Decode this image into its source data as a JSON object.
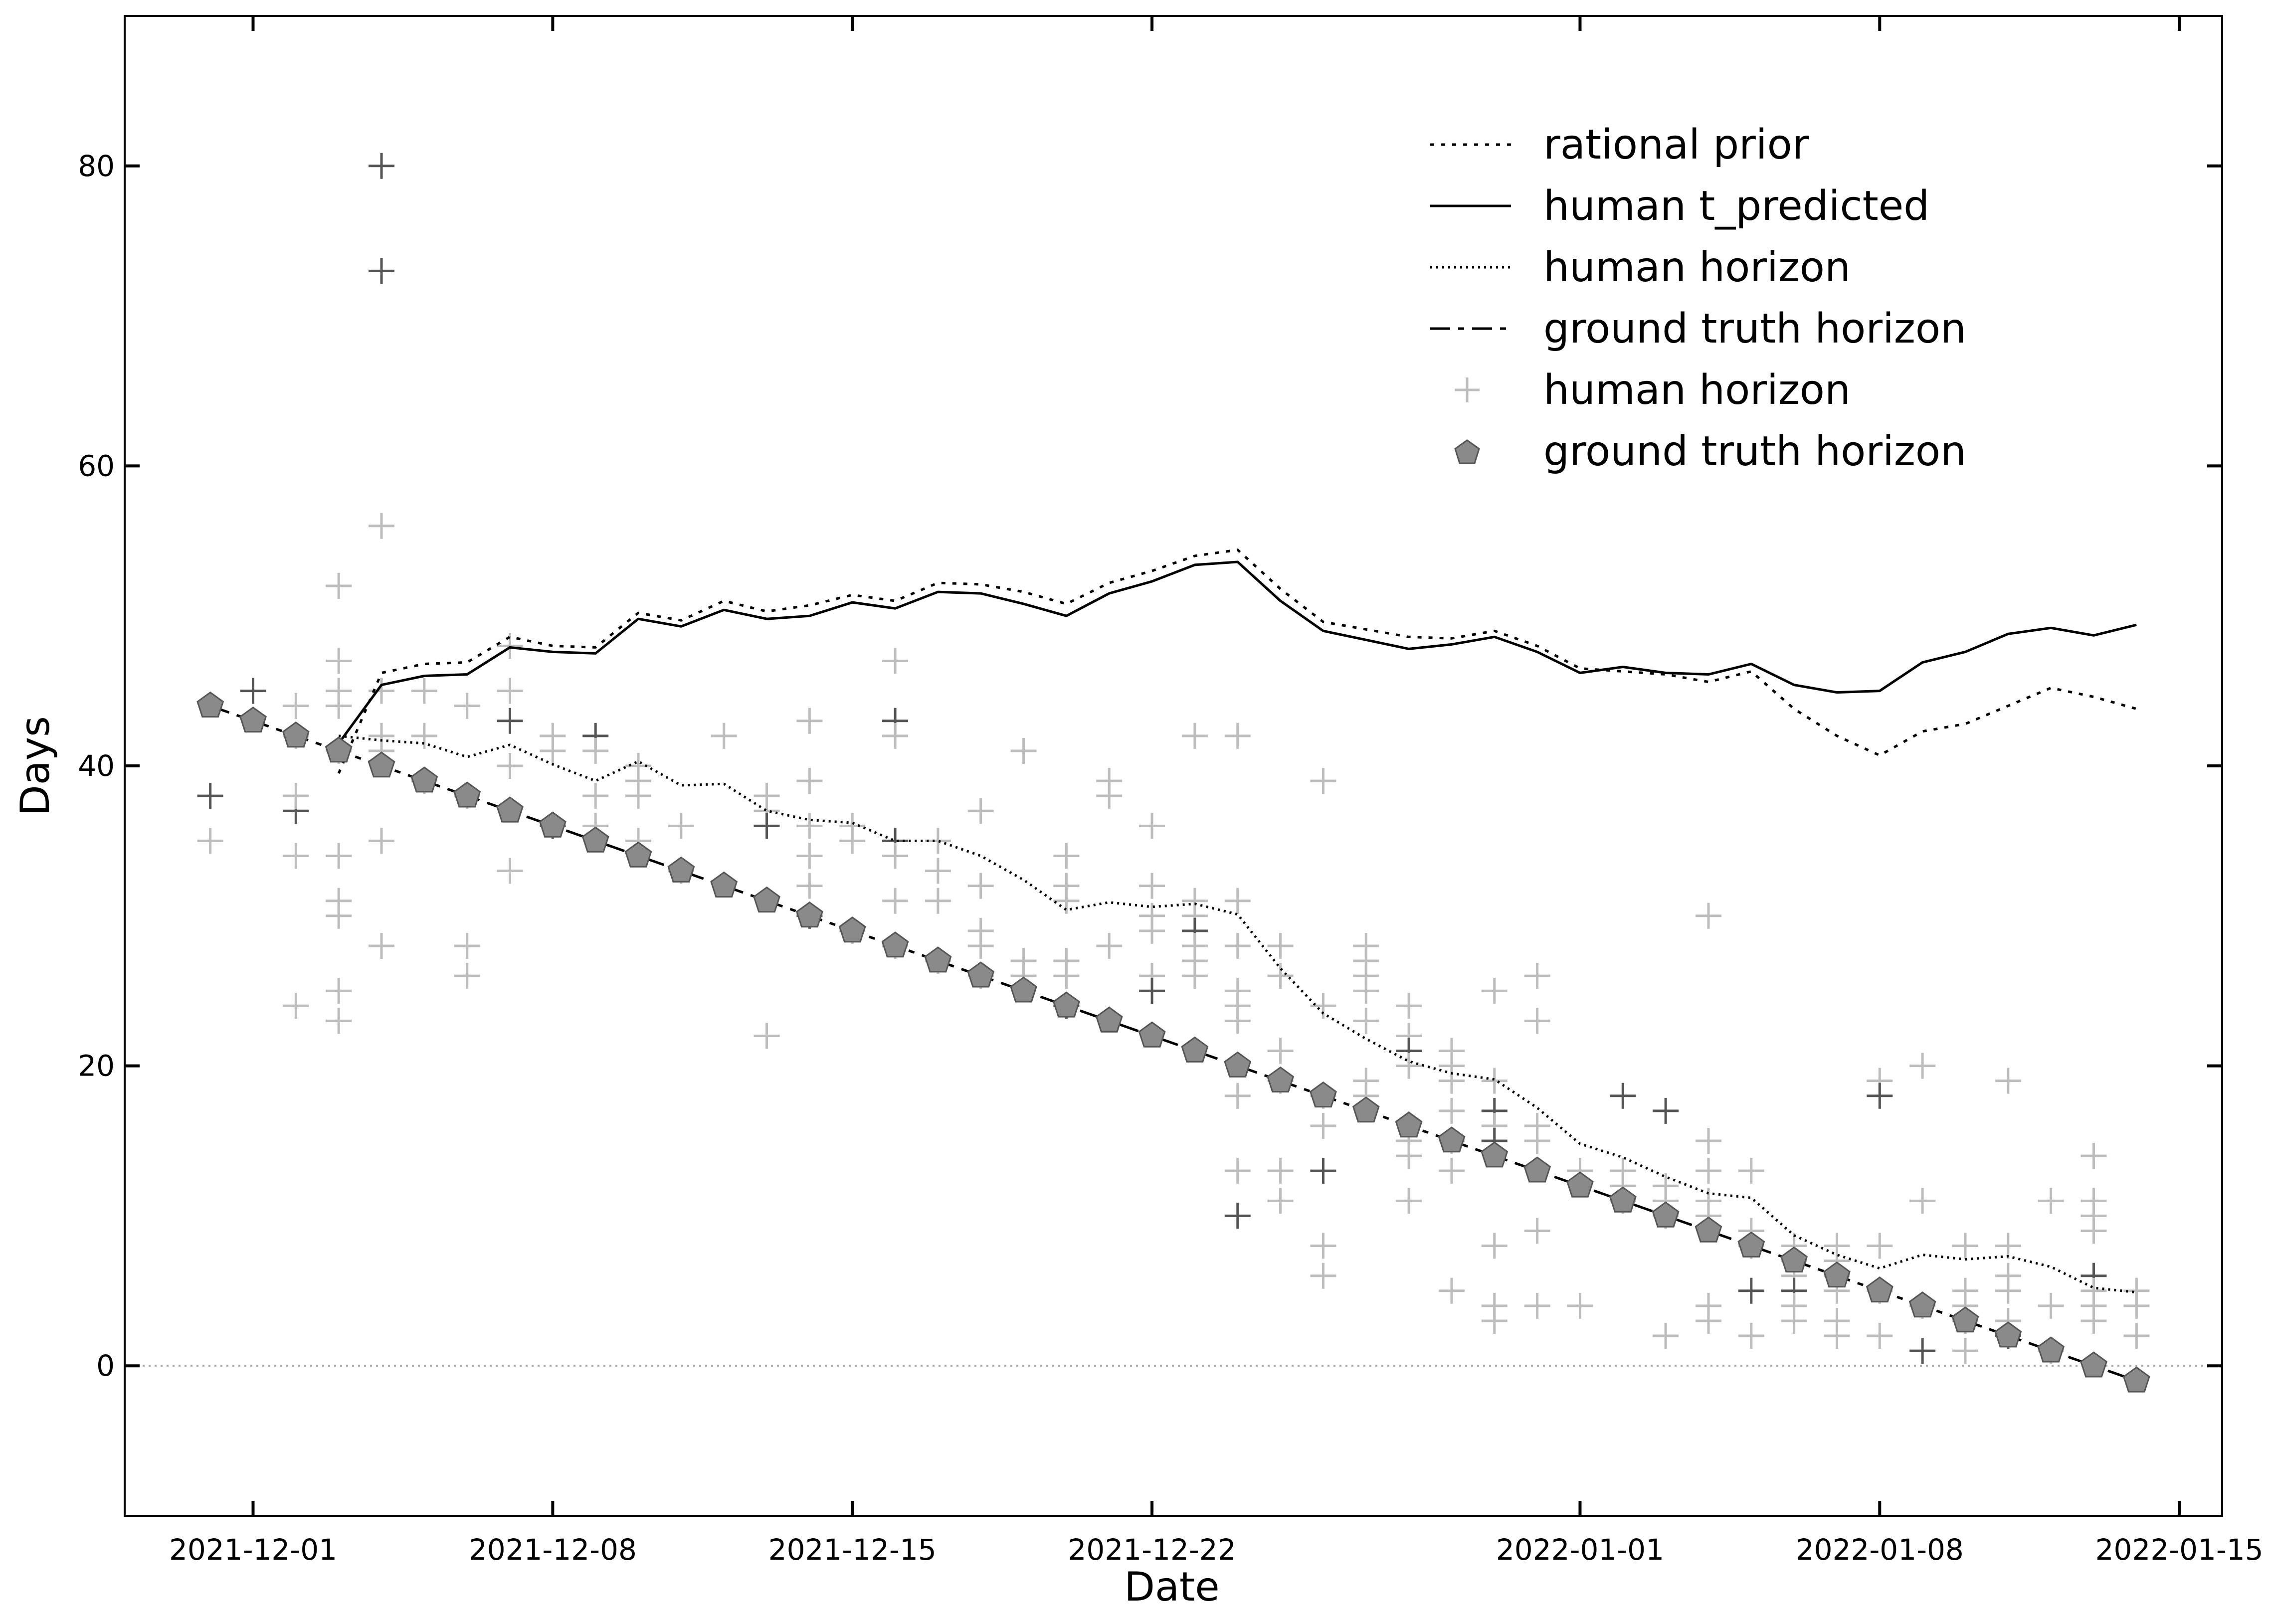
{
  "chart_data": {
    "type": "line",
    "xlabel": "Date",
    "ylabel": "Days",
    "x_tick_labels": [
      "2021-12-01",
      "2021-12-08",
      "2021-12-15",
      "2021-12-22",
      "2022-01-01",
      "2022-01-08",
      "2022-01-15"
    ],
    "y_tick_labels": [
      "0",
      "20",
      "40",
      "60",
      "80"
    ],
    "x_start": "2021-11-30",
    "ylim": [
      -10,
      90
    ],
    "xlim": [
      "2021-11-28",
      "2022-01-16"
    ],
    "zero_reference_line": true,
    "grid": false,
    "legend_position": "top-right",
    "legend": [
      {
        "label": "rational prior",
        "style": "dotted-line"
      },
      {
        "label": "human t_predicted",
        "style": "solid-line"
      },
      {
        "label": "human horizon",
        "style": "fine-dotted-line"
      },
      {
        "label": "ground truth horizon",
        "style": "dashed-line"
      },
      {
        "label": "human horizon",
        "style": "plus-marker"
      },
      {
        "label": "ground truth horizon",
        "style": "pentagon-marker"
      }
    ],
    "series": [
      {
        "name": "rational prior",
        "style": "dotted",
        "values": [
          null,
          null,
          null,
          39.5,
          46.2,
          46.8,
          46.9,
          48.6,
          48.0,
          47.9,
          50.2,
          49.7,
          51.0,
          50.3,
          50.7,
          51.4,
          51.0,
          52.2,
          52.1,
          51.6,
          50.8,
          52.2,
          53.0,
          54.0,
          54.4,
          51.8,
          49.6,
          49.1,
          48.6,
          48.5,
          49.0,
          48.0,
          46.5,
          46.3,
          46.1,
          45.6,
          46.3,
          43.8,
          42.0,
          40.7,
          42.3,
          42.8,
          44.0,
          45.2,
          44.6,
          43.8
        ]
      },
      {
        "name": "human t_predicted",
        "style": "solid",
        "values": [
          null,
          null,
          null,
          41.5,
          45.4,
          46.0,
          46.1,
          47.9,
          47.6,
          47.5,
          49.8,
          49.3,
          50.4,
          49.8,
          50.0,
          50.9,
          50.5,
          51.6,
          51.5,
          50.8,
          50.0,
          51.5,
          52.3,
          53.4,
          53.6,
          51.0,
          49.0,
          48.4,
          47.8,
          48.1,
          48.6,
          47.6,
          46.2,
          46.6,
          46.2,
          46.1,
          46.8,
          45.4,
          44.9,
          45.0,
          46.9,
          47.6,
          48.8,
          49.2,
          48.7,
          49.4
        ]
      },
      {
        "name": "human horizon",
        "style": "fine-dotted",
        "values": [
          null,
          null,
          null,
          42.0,
          41.7,
          41.5,
          40.6,
          41.4,
          40.1,
          39.0,
          40.3,
          38.7,
          38.8,
          37.0,
          36.4,
          36.2,
          35.0,
          35.0,
          34.0,
          32.4,
          30.4,
          30.9,
          30.6,
          30.8,
          30.1,
          26.5,
          23.5,
          21.8,
          20.3,
          19.5,
          19.1,
          17.2,
          14.8,
          13.9,
          12.6,
          11.5,
          11.2,
          8.7,
          7.4,
          6.5,
          7.4,
          7.1,
          7.3,
          6.6,
          5.2,
          4.9
        ]
      },
      {
        "name": "ground truth horizon",
        "style": "dashed",
        "values": [
          44,
          43,
          42,
          41,
          40,
          39,
          38,
          37,
          36,
          35,
          34,
          33,
          32,
          31,
          30,
          29,
          28,
          27,
          26,
          25,
          24,
          23,
          22,
          21,
          20,
          19,
          18,
          17,
          16,
          15,
          14,
          13,
          12,
          11,
          10,
          9,
          8,
          7,
          6,
          5,
          4,
          3,
          2,
          1,
          0,
          -1
        ]
      }
    ],
    "scatter_human_horizon": [
      [
        0,
        38
      ],
      [
        0,
        35
      ],
      [
        1,
        45
      ],
      [
        2,
        37
      ],
      [
        2,
        38
      ],
      [
        2,
        34
      ],
      [
        2,
        24
      ],
      [
        2,
        42
      ],
      [
        2,
        44
      ],
      [
        3,
        52
      ],
      [
        3,
        47
      ],
      [
        3,
        45
      ],
      [
        3,
        44
      ],
      [
        3,
        41
      ],
      [
        3,
        34
      ],
      [
        3,
        31
      ],
      [
        3,
        30
      ],
      [
        3,
        25
      ],
      [
        3,
        23
      ],
      [
        4,
        80
      ],
      [
        4,
        73
      ],
      [
        4,
        56
      ],
      [
        4,
        45
      ],
      [
        4,
        42
      ],
      [
        4,
        41
      ],
      [
        4,
        35
      ],
      [
        4,
        28
      ],
      [
        5,
        45
      ],
      [
        5,
        42
      ],
      [
        5,
        39
      ],
      [
        6,
        44
      ],
      [
        6,
        38
      ],
      [
        6,
        28
      ],
      [
        6,
        26
      ],
      [
        7,
        48
      ],
      [
        7,
        45
      ],
      [
        7,
        43
      ],
      [
        7,
        40
      ],
      [
        7,
        33
      ],
      [
        8,
        42
      ],
      [
        8,
        41
      ],
      [
        8,
        36
      ],
      [
        9,
        42
      ],
      [
        9,
        41
      ],
      [
        9,
        38
      ],
      [
        9,
        36
      ],
      [
        10,
        40
      ],
      [
        10,
        39
      ],
      [
        10,
        38
      ],
      [
        10,
        35
      ],
      [
        11,
        36
      ],
      [
        11,
        33
      ],
      [
        12,
        42
      ],
      [
        13,
        38
      ],
      [
        13,
        37
      ],
      [
        13,
        36
      ],
      [
        13,
        22
      ],
      [
        14,
        43
      ],
      [
        14,
        39
      ],
      [
        14,
        36
      ],
      [
        14,
        34
      ],
      [
        14,
        32
      ],
      [
        14,
        30
      ],
      [
        15,
        36
      ],
      [
        15,
        35
      ],
      [
        15,
        29
      ],
      [
        16,
        47
      ],
      [
        16,
        43
      ],
      [
        16,
        42
      ],
      [
        16,
        35
      ],
      [
        16,
        34
      ],
      [
        16,
        31
      ],
      [
        16,
        28
      ],
      [
        17,
        35
      ],
      [
        17,
        33
      ],
      [
        17,
        31
      ],
      [
        17,
        27
      ],
      [
        18,
        37
      ],
      [
        18,
        32
      ],
      [
        18,
        29
      ],
      [
        18,
        28
      ],
      [
        18,
        26
      ],
      [
        19,
        41
      ],
      [
        19,
        27
      ],
      [
        19,
        26
      ],
      [
        20,
        34
      ],
      [
        20,
        32
      ],
      [
        20,
        31
      ],
      [
        20,
        27
      ],
      [
        20,
        26
      ],
      [
        20,
        24
      ],
      [
        21,
        39
      ],
      [
        21,
        38
      ],
      [
        21,
        28
      ],
      [
        22,
        36
      ],
      [
        22,
        32
      ],
      [
        22,
        30
      ],
      [
        22,
        29
      ],
      [
        22,
        26
      ],
      [
        22,
        25
      ],
      [
        23,
        42
      ],
      [
        23,
        31
      ],
      [
        23,
        30
      ],
      [
        23,
        29
      ],
      [
        23,
        28
      ],
      [
        23,
        27
      ],
      [
        23,
        26
      ],
      [
        24,
        42
      ],
      [
        24,
        31
      ],
      [
        24,
        28
      ],
      [
        24,
        25
      ],
      [
        24,
        24
      ],
      [
        24,
        23
      ],
      [
        24,
        18
      ],
      [
        24,
        13
      ],
      [
        24,
        10
      ],
      [
        25,
        28
      ],
      [
        25,
        26
      ],
      [
        25,
        21
      ],
      [
        25,
        19
      ],
      [
        25,
        13
      ],
      [
        25,
        11
      ],
      [
        26,
        39
      ],
      [
        26,
        24
      ],
      [
        26,
        18
      ],
      [
        26,
        16
      ],
      [
        26,
        13
      ],
      [
        26,
        8
      ],
      [
        26,
        6
      ],
      [
        27,
        28
      ],
      [
        27,
        27
      ],
      [
        27,
        26
      ],
      [
        27,
        25
      ],
      [
        27,
        23
      ],
      [
        27,
        19
      ],
      [
        27,
        18
      ],
      [
        28,
        24
      ],
      [
        28,
        22
      ],
      [
        28,
        21
      ],
      [
        28,
        20
      ],
      [
        28,
        15
      ],
      [
        28,
        14
      ],
      [
        28,
        11
      ],
      [
        29,
        21
      ],
      [
        29,
        20
      ],
      [
        29,
        19
      ],
      [
        29,
        17
      ],
      [
        29,
        15
      ],
      [
        29,
        13
      ],
      [
        29,
        5
      ],
      [
        30,
        25
      ],
      [
        30,
        19
      ],
      [
        30,
        17
      ],
      [
        30,
        16
      ],
      [
        30,
        15
      ],
      [
        30,
        8
      ],
      [
        30,
        4
      ],
      [
        30,
        3
      ],
      [
        31,
        26
      ],
      [
        31,
        23
      ],
      [
        31,
        16
      ],
      [
        31,
        15
      ],
      [
        31,
        9
      ],
      [
        31,
        4
      ],
      [
        32,
        13
      ],
      [
        32,
        4
      ],
      [
        33,
        18
      ],
      [
        33,
        13
      ],
      [
        33,
        12
      ],
      [
        33,
        11
      ],
      [
        34,
        17
      ],
      [
        34,
        12
      ],
      [
        34,
        11
      ],
      [
        34,
        10
      ],
      [
        34,
        2
      ],
      [
        35,
        30
      ],
      [
        35,
        15
      ],
      [
        35,
        13
      ],
      [
        35,
        11
      ],
      [
        35,
        10
      ],
      [
        35,
        4
      ],
      [
        35,
        3
      ],
      [
        36,
        13
      ],
      [
        36,
        9
      ],
      [
        36,
        8
      ],
      [
        36,
        5
      ],
      [
        36,
        2
      ],
      [
        37,
        8
      ],
      [
        37,
        7
      ],
      [
        37,
        6
      ],
      [
        37,
        5
      ],
      [
        37,
        4
      ],
      [
        37,
        3
      ],
      [
        38,
        8
      ],
      [
        38,
        7
      ],
      [
        38,
        6
      ],
      [
        38,
        5
      ],
      [
        38,
        3
      ],
      [
        38,
        2
      ],
      [
        39,
        19
      ],
      [
        39,
        18
      ],
      [
        39,
        8
      ],
      [
        39,
        5
      ],
      [
        39,
        2
      ],
      [
        40,
        20
      ],
      [
        40,
        11
      ],
      [
        40,
        4
      ],
      [
        40,
        1
      ],
      [
        41,
        8
      ],
      [
        41,
        5
      ],
      [
        41,
        4
      ],
      [
        41,
        3
      ],
      [
        41,
        1
      ],
      [
        42,
        19
      ],
      [
        42,
        8
      ],
      [
        42,
        6
      ],
      [
        42,
        5
      ],
      [
        42,
        3
      ],
      [
        42,
        2
      ],
      [
        43,
        11
      ],
      [
        43,
        4
      ],
      [
        43,
        1
      ],
      [
        44,
        14
      ],
      [
        44,
        11
      ],
      [
        44,
        10
      ],
      [
        44,
        9
      ],
      [
        44,
        6
      ],
      [
        44,
        5
      ],
      [
        44,
        4
      ],
      [
        44,
        3
      ],
      [
        45,
        5
      ],
      [
        45,
        4
      ],
      [
        45,
        2
      ]
    ],
    "scatter_dark_index": [
      0,
      2,
      3,
      19,
      20,
      36,
      41,
      42,
      55,
      62,
      67,
      69,
      90,
      99,
      103,
      115,
      126,
      138,
      152,
      154,
      166,
      170,
      185,
      190,
      200,
      207,
      218,
      226,
      233,
      241,
      249,
      253
    ]
  }
}
